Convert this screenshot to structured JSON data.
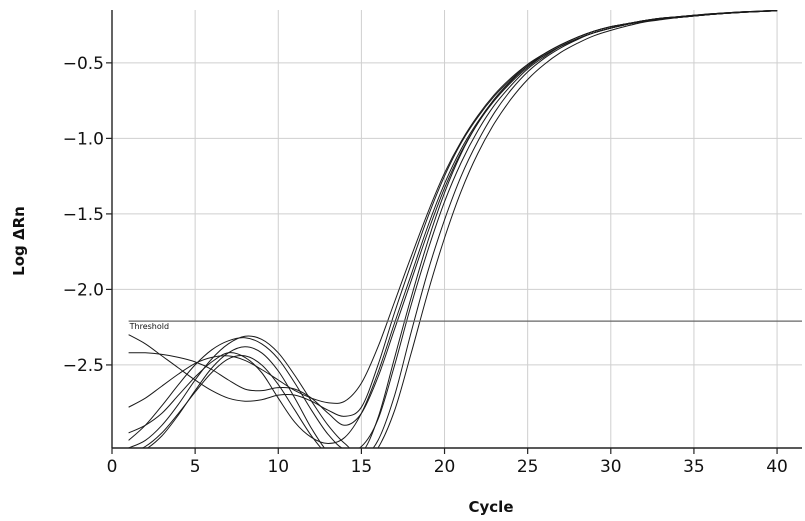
{
  "chart_data": {
    "type": "line",
    "xlabel": "Cycle",
    "ylabel": "Log ΔRn",
    "xlim": [
      0,
      41.5
    ],
    "ylim": [
      -3.05,
      -0.15
    ],
    "xticks": [
      0,
      5,
      10,
      15,
      20,
      25,
      30,
      35,
      40
    ],
    "yticks": [
      -2.5,
      -2.0,
      -1.5,
      -1.0,
      -0.5
    ],
    "ytick_labels": [
      "−2.5",
      "−2.0",
      "−1.5",
      "−1.0",
      "−0.5"
    ],
    "grid": true,
    "threshold": {
      "label": "Threshold",
      "value": -2.21,
      "x_start": 1
    },
    "colors": {
      "line": "#1a1a1a",
      "grid": "#cfcfcf",
      "threshold": "#666666",
      "axis": "#222222"
    },
    "series": [
      {
        "x": [
          1,
          2,
          3,
          4,
          5,
          6,
          7,
          8,
          9,
          10,
          11,
          12,
          13,
          14,
          15,
          16,
          17,
          18,
          19,
          20,
          21,
          22,
          23,
          24,
          25,
          26,
          27,
          28,
          29,
          30,
          31,
          32,
          33,
          34,
          35,
          36,
          37,
          38,
          39,
          40
        ],
        "values": [
          -2.95,
          -2.9,
          -2.82,
          -2.7,
          -2.58,
          -2.48,
          -2.42,
          -2.45,
          -2.55,
          -2.72,
          -2.88,
          -2.98,
          -3.02,
          -2.98,
          -2.82,
          -2.55,
          -2.22,
          -1.9,
          -1.58,
          -1.3,
          -1.07,
          -0.89,
          -0.74,
          -0.62,
          -0.52,
          -0.45,
          -0.39,
          -0.34,
          -0.3,
          -0.27,
          -0.245,
          -0.225,
          -0.21,
          -0.2,
          -0.19,
          -0.18,
          -0.172,
          -0.165,
          -0.16,
          -0.155
        ]
      },
      {
        "x": [
          1,
          2,
          3,
          4,
          5,
          6,
          7,
          8,
          9,
          10,
          11,
          12,
          13,
          14,
          15,
          16,
          17,
          18,
          19,
          20,
          21,
          22,
          23,
          24,
          25,
          26,
          27,
          28,
          29,
          30,
          31,
          32,
          33,
          34,
          35,
          36,
          37,
          38,
          39,
          40
        ],
        "values": [
          -2.3,
          -2.36,
          -2.44,
          -2.52,
          -2.6,
          -2.67,
          -2.72,
          -2.74,
          -2.73,
          -2.7,
          -2.7,
          -2.74,
          -2.8,
          -2.84,
          -2.78,
          -2.5,
          -2.15,
          -1.83,
          -1.52,
          -1.25,
          -1.03,
          -0.86,
          -0.72,
          -0.61,
          -0.51,
          -0.44,
          -0.38,
          -0.33,
          -0.29,
          -0.26,
          -0.24,
          -0.22,
          -0.205,
          -0.195,
          -0.185,
          -0.175,
          -0.168,
          -0.162,
          -0.157,
          -0.152
        ]
      },
      {
        "x": [
          1,
          2,
          3,
          4,
          5,
          6,
          7,
          8,
          9,
          10,
          11,
          12,
          13,
          14,
          15,
          16,
          17,
          18,
          19,
          20,
          21,
          22,
          23,
          24,
          25,
          26,
          27,
          28,
          29,
          30,
          31,
          32,
          33,
          34,
          35,
          36,
          37,
          38,
          39,
          40
        ],
        "values": [
          -2.78,
          -2.72,
          -2.64,
          -2.56,
          -2.49,
          -2.45,
          -2.44,
          -2.47,
          -2.53,
          -2.6,
          -2.67,
          -2.72,
          -2.75,
          -2.74,
          -2.62,
          -2.38,
          -2.08,
          -1.78,
          -1.49,
          -1.23,
          -1.02,
          -0.85,
          -0.71,
          -0.6,
          -0.51,
          -0.44,
          -0.38,
          -0.33,
          -0.29,
          -0.26,
          -0.24,
          -0.22,
          -0.205,
          -0.195,
          -0.185,
          -0.176,
          -0.168,
          -0.162,
          -0.157,
          -0.152
        ]
      },
      {
        "x": [
          1,
          2,
          3,
          4,
          5,
          6,
          7,
          8,
          9,
          10,
          11,
          12,
          13,
          14,
          15,
          16,
          17,
          18,
          19,
          20,
          21,
          22,
          23,
          24,
          25,
          26,
          27,
          28,
          29,
          30,
          31,
          32,
          33,
          34,
          35,
          36,
          37,
          38,
          39,
          40
        ],
        "values": [
          -3.05,
          -3.0,
          -2.9,
          -2.76,
          -2.6,
          -2.46,
          -2.36,
          -2.31,
          -2.33,
          -2.42,
          -2.57,
          -2.74,
          -2.9,
          -3.02,
          -3.08,
          -2.85,
          -2.45,
          -2.05,
          -1.68,
          -1.36,
          -1.1,
          -0.9,
          -0.74,
          -0.62,
          -0.52,
          -0.44,
          -0.38,
          -0.33,
          -0.29,
          -0.26,
          -0.24,
          -0.22,
          -0.205,
          -0.195,
          -0.185,
          -0.176,
          -0.168,
          -0.162,
          -0.157,
          -0.152
        ]
      },
      {
        "x": [
          1,
          2,
          3,
          4,
          5,
          6,
          7,
          8,
          9,
          10,
          11,
          12,
          13,
          14,
          15,
          16,
          17,
          18,
          19,
          20,
          21,
          22,
          23,
          24,
          25,
          26,
          27,
          28,
          29,
          30,
          31,
          32,
          33,
          34,
          35,
          36,
          37,
          38,
          39,
          40
        ],
        "values": [
          -2.42,
          -2.42,
          -2.43,
          -2.45,
          -2.48,
          -2.53,
          -2.6,
          -2.66,
          -2.67,
          -2.65,
          -2.66,
          -2.72,
          -2.82,
          -2.9,
          -2.82,
          -2.58,
          -2.26,
          -1.94,
          -1.62,
          -1.33,
          -1.09,
          -0.9,
          -0.75,
          -0.63,
          -0.53,
          -0.45,
          -0.39,
          -0.34,
          -0.3,
          -0.27,
          -0.245,
          -0.225,
          -0.21,
          -0.2,
          -0.19,
          -0.18,
          -0.172,
          -0.165,
          -0.16,
          -0.155
        ]
      },
      {
        "x": [
          1,
          2,
          3,
          4,
          5,
          6,
          7,
          8,
          9,
          10,
          11,
          12,
          13,
          14,
          15,
          16,
          17,
          18,
          19,
          20,
          21,
          22,
          23,
          24,
          25,
          26,
          27,
          28,
          29,
          30,
          31,
          32,
          33,
          34,
          35,
          36,
          37,
          38,
          39,
          40
        ],
        "values": [
          -3.1,
          -3.06,
          -2.97,
          -2.83,
          -2.67,
          -2.52,
          -2.42,
          -2.38,
          -2.42,
          -2.54,
          -2.72,
          -2.92,
          -3.08,
          -3.15,
          -3.12,
          -3.0,
          -2.7,
          -2.28,
          -1.88,
          -1.54,
          -1.25,
          -1.02,
          -0.83,
          -0.68,
          -0.56,
          -0.47,
          -0.4,
          -0.345,
          -0.3,
          -0.27,
          -0.245,
          -0.225,
          -0.21,
          -0.2,
          -0.19,
          -0.18,
          -0.172,
          -0.165,
          -0.16,
          -0.155
        ]
      },
      {
        "x": [
          1,
          2,
          3,
          4,
          5,
          6,
          7,
          8,
          9,
          10,
          11,
          12,
          13,
          14,
          15,
          16,
          17,
          18,
          19,
          20,
          21,
          22,
          23,
          24,
          25,
          26,
          27,
          28,
          29,
          30,
          31,
          32,
          33,
          34,
          35,
          36,
          37,
          38,
          39,
          40
        ],
        "values": [
          -3.0,
          -2.9,
          -2.77,
          -2.63,
          -2.5,
          -2.4,
          -2.34,
          -2.32,
          -2.36,
          -2.46,
          -2.62,
          -2.8,
          -2.96,
          -3.06,
          -3.04,
          -2.86,
          -2.5,
          -2.1,
          -1.74,
          -1.42,
          -1.16,
          -0.95,
          -0.78,
          -0.65,
          -0.54,
          -0.46,
          -0.39,
          -0.34,
          -0.3,
          -0.27,
          -0.245,
          -0.225,
          -0.21,
          -0.2,
          -0.19,
          -0.18,
          -0.172,
          -0.165,
          -0.16,
          -0.155
        ]
      },
      {
        "x": [
          1,
          2,
          3,
          4,
          5,
          6,
          7,
          8,
          9,
          10,
          11,
          12,
          13,
          14,
          15,
          16,
          17,
          18,
          19,
          20,
          21,
          22,
          23,
          24,
          25,
          26,
          27,
          28,
          29,
          30,
          31,
          32,
          33,
          34,
          35,
          36,
          37,
          38,
          39,
          40
        ],
        "values": [
          -3.08,
          -3.04,
          -2.95,
          -2.82,
          -2.68,
          -2.55,
          -2.46,
          -2.44,
          -2.5,
          -2.63,
          -2.8,
          -2.97,
          -3.1,
          -3.18,
          -3.16,
          -3.05,
          -2.8,
          -2.42,
          -2.02,
          -1.66,
          -1.35,
          -1.1,
          -0.9,
          -0.74,
          -0.61,
          -0.51,
          -0.43,
          -0.37,
          -0.32,
          -0.285,
          -0.255,
          -0.23,
          -0.215,
          -0.2,
          -0.19,
          -0.18,
          -0.172,
          -0.165,
          -0.16,
          -0.155
        ]
      }
    ]
  }
}
